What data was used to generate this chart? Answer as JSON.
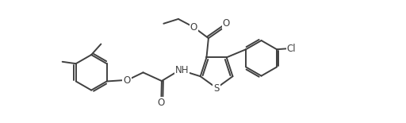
{
  "bg_color": "#ffffff",
  "line_color": "#404040",
  "line_width": 1.4,
  "font_size": 8.5,
  "xlim": [
    0,
    10.5
  ],
  "ylim": [
    0,
    3.2
  ]
}
